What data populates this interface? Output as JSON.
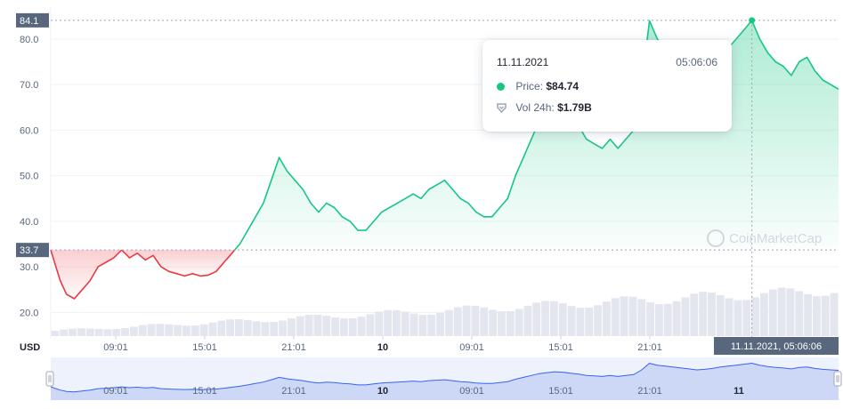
{
  "chart_data": {
    "type": "line",
    "title": "",
    "currency_label": "USD",
    "y_ticks": [
      "20.0",
      "30.0",
      "40.0",
      "50.0",
      "60.0",
      "70.0",
      "80.0"
    ],
    "y_tick_values": [
      20,
      30,
      40,
      50,
      60,
      70,
      80
    ],
    "ylim": [
      15,
      87
    ],
    "high_label": "84.1",
    "high_value": 84.1,
    "open_label": "33.7",
    "open_value": 33.7,
    "x_ticks": [
      {
        "label": "09:01",
        "bold": false
      },
      {
        "label": "15:01",
        "bold": false
      },
      {
        "label": "21:01",
        "bold": false
      },
      {
        "label": "10",
        "bold": true
      },
      {
        "label": "09:01",
        "bold": false
      },
      {
        "label": "15:01",
        "bold": false
      },
      {
        "label": "21:01",
        "bold": false
      }
    ],
    "navigator_ticks": [
      {
        "label": "09:01",
        "bold": false
      },
      {
        "label": "15:01",
        "bold": false
      },
      {
        "label": "21:01",
        "bold": false
      },
      {
        "label": "10",
        "bold": true
      },
      {
        "label": "09:01",
        "bold": false
      },
      {
        "label": "15:01",
        "bold": false
      },
      {
        "label": "21:01",
        "bold": false
      },
      {
        "label": "11",
        "bold": true
      }
    ],
    "crosshair_label": "11.11.2021, 05:06:06",
    "price_points": [
      [
        0,
        33.7
      ],
      [
        1.2,
        27
      ],
      [
        2,
        24
      ],
      [
        3,
        23
      ],
      [
        4,
        25
      ],
      [
        5,
        27
      ],
      [
        6,
        30
      ],
      [
        7,
        31
      ],
      [
        8,
        32
      ],
      [
        9,
        33.7
      ],
      [
        10,
        32
      ],
      [
        11,
        33
      ],
      [
        12,
        31.5
      ],
      [
        13,
        32.5
      ],
      [
        14,
        30
      ],
      [
        15,
        29
      ],
      [
        16,
        28.5
      ],
      [
        17,
        28
      ],
      [
        18,
        28.5
      ],
      [
        19,
        28
      ],
      [
        20,
        28.2
      ],
      [
        21,
        29
      ],
      [
        22,
        31
      ],
      [
        23,
        33
      ],
      [
        24,
        35
      ],
      [
        25,
        38
      ],
      [
        26,
        41
      ],
      [
        27,
        44
      ],
      [
        28,
        49
      ],
      [
        29,
        54
      ],
      [
        30,
        51
      ],
      [
        31,
        49
      ],
      [
        32,
        47
      ],
      [
        33,
        44
      ],
      [
        34,
        42
      ],
      [
        35,
        44
      ],
      [
        36,
        43
      ],
      [
        37,
        41
      ],
      [
        38,
        40
      ],
      [
        39,
        38
      ],
      [
        40,
        38
      ],
      [
        41,
        40
      ],
      [
        42,
        42
      ],
      [
        43,
        43
      ],
      [
        44,
        44
      ],
      [
        45,
        45
      ],
      [
        46,
        46
      ],
      [
        47,
        45
      ],
      [
        48,
        47
      ],
      [
        49,
        48
      ],
      [
        50,
        49
      ],
      [
        51,
        47
      ],
      [
        52,
        45
      ],
      [
        53,
        44
      ],
      [
        54,
        42
      ],
      [
        55,
        41
      ],
      [
        56,
        41
      ],
      [
        57,
        43
      ],
      [
        58,
        45
      ],
      [
        59,
        50
      ],
      [
        60,
        54
      ],
      [
        61,
        58
      ],
      [
        62,
        62
      ],
      [
        63,
        64
      ],
      [
        64,
        66
      ],
      [
        65,
        65
      ],
      [
        66,
        63
      ],
      [
        67,
        61
      ],
      [
        68,
        58
      ],
      [
        69,
        57
      ],
      [
        70,
        56
      ],
      [
        71,
        58
      ],
      [
        72,
        56
      ],
      [
        73,
        58
      ],
      [
        74,
        60
      ],
      [
        75,
        70
      ],
      [
        76,
        84
      ],
      [
        77,
        80
      ],
      [
        78,
        78
      ],
      [
        79,
        76
      ],
      [
        80,
        74
      ],
      [
        81,
        72
      ],
      [
        82,
        70
      ],
      [
        83,
        71
      ],
      [
        84,
        73
      ],
      [
        85,
        76
      ],
      [
        86,
        78
      ],
      [
        87,
        80
      ],
      [
        88,
        82
      ],
      [
        89,
        84.1
      ],
      [
        90,
        80
      ],
      [
        91,
        77
      ],
      [
        92,
        75
      ],
      [
        93,
        74
      ],
      [
        94,
        72
      ],
      [
        95,
        75
      ],
      [
        96,
        76
      ],
      [
        97,
        73
      ],
      [
        98,
        71
      ],
      [
        99,
        70
      ],
      [
        100,
        69
      ]
    ],
    "price_colors": {
      "down": "#ea3943",
      "up": "#16c784"
    },
    "volume_bars_count": 90,
    "grid": true,
    "watermark": "CoinMarketCap"
  },
  "tooltip": {
    "date": "11.11.2021",
    "time": "05:06:06",
    "price_label": "Price:",
    "price_value": "$84.74",
    "vol_label": "Vol 24h:",
    "vol_value": "$1.79B"
  }
}
